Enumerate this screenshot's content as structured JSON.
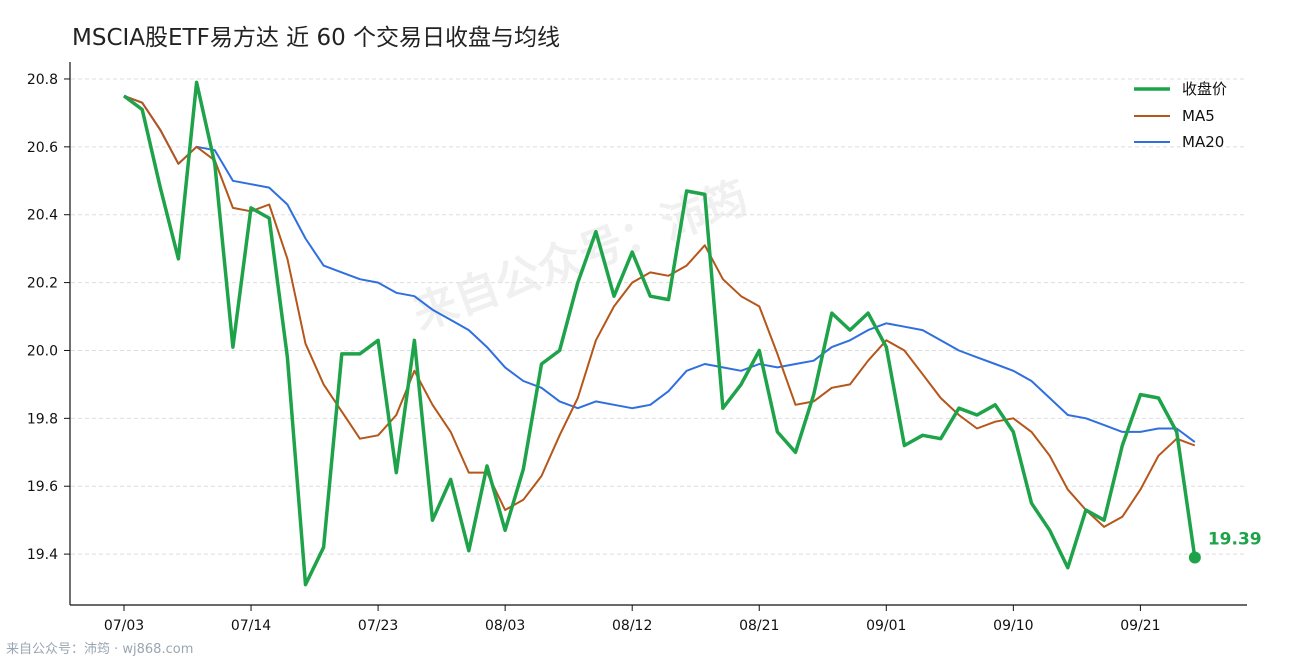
{
  "title": "MSCIA股ETF易方达 近 60 个交易日收盘与均线",
  "watermark": "来自公众号：沛筠",
  "footer": "来自公众号：沛筠 · wj868.com",
  "colors": {
    "close": "#1fa34a",
    "ma5": "#b5561a",
    "ma20": "#2f6fdf",
    "grid": "#dddddd"
  },
  "legend": {
    "close": "收盘价",
    "ma5": "MA5",
    "ma20": "MA20"
  },
  "last_value_label": "19.39",
  "chart_data": {
    "type": "line",
    "ylim": [
      19.25,
      20.85
    ],
    "yticks": [
      "20.8",
      "20.6",
      "20.4",
      "20.2",
      "20.0",
      "19.8",
      "19.6",
      "19.4"
    ],
    "ytick_values": [
      20.8,
      20.6,
      20.4,
      20.2,
      20.0,
      19.8,
      19.6,
      19.4
    ],
    "xticks": [
      {
        "index": 0,
        "label": "07/03"
      },
      {
        "index": 7,
        "label": "07/14"
      },
      {
        "index": 14,
        "label": "07/23"
      },
      {
        "index": 21,
        "label": "08/03"
      },
      {
        "index": 28,
        "label": "08/12"
      },
      {
        "index": 35,
        "label": "08/21"
      },
      {
        "index": 42,
        "label": "09/01"
      },
      {
        "index": 49,
        "label": "09/10"
      },
      {
        "index": 56,
        "label": "09/21"
      }
    ],
    "grid": true,
    "legend_position": "top-right",
    "series": [
      {
        "name": "收盘价",
        "key": "close",
        "values": [
          20.75,
          20.71,
          20.48,
          20.27,
          20.79,
          20.55,
          20.01,
          20.42,
          20.39,
          19.98,
          19.31,
          19.42,
          19.99,
          19.99,
          20.03,
          19.64,
          20.03,
          19.5,
          19.62,
          19.41,
          19.66,
          19.47,
          19.65,
          19.96,
          20.0,
          20.2,
          20.35,
          20.16,
          20.29,
          20.16,
          20.15,
          20.47,
          20.46,
          19.83,
          19.9,
          20.0,
          19.76,
          19.7,
          19.87,
          20.11,
          20.06,
          20.11,
          20.01,
          19.72,
          19.75,
          19.74,
          19.83,
          19.81,
          19.84,
          19.76,
          19.55,
          19.47,
          19.36,
          19.53,
          19.5,
          19.72,
          19.87,
          19.86,
          19.76,
          19.39
        ]
      },
      {
        "name": "MA5",
        "key": "ma5",
        "values": [
          20.75,
          20.73,
          20.65,
          20.55,
          20.6,
          20.56,
          20.42,
          20.41,
          20.43,
          20.27,
          20.02,
          19.9,
          19.82,
          19.74,
          19.75,
          19.81,
          19.94,
          19.84,
          19.76,
          19.64,
          19.64,
          19.53,
          19.56,
          19.63,
          19.75,
          19.86,
          20.03,
          20.13,
          20.2,
          20.23,
          20.22,
          20.25,
          20.31,
          20.21,
          20.16,
          20.13,
          19.99,
          19.84,
          19.85,
          19.89,
          19.9,
          19.97,
          20.03,
          20.0,
          19.93,
          19.86,
          19.81,
          19.77,
          19.79,
          19.8,
          19.76,
          19.69,
          19.59,
          19.53,
          19.48,
          19.51,
          19.59,
          19.69,
          19.74,
          19.72
        ]
      },
      {
        "name": "MA20",
        "key": "ma20",
        "values": [
          20.75,
          20.73,
          20.65,
          20.55,
          20.6,
          20.59,
          20.5,
          20.49,
          20.48,
          20.43,
          20.33,
          20.25,
          20.23,
          20.21,
          20.2,
          20.17,
          20.16,
          20.12,
          20.09,
          20.06,
          20.01,
          19.95,
          19.91,
          19.89,
          19.85,
          19.83,
          19.85,
          19.84,
          19.83,
          19.84,
          19.88,
          19.94,
          19.96,
          19.95,
          19.94,
          19.96,
          19.95,
          19.96,
          19.97,
          20.01,
          20.03,
          20.06,
          20.08,
          20.07,
          20.06,
          20.03,
          20.0,
          19.98,
          19.96,
          19.94,
          19.91,
          19.86,
          19.81,
          19.8,
          19.78,
          19.76,
          19.76,
          19.77,
          19.77,
          19.73
        ]
      }
    ]
  }
}
